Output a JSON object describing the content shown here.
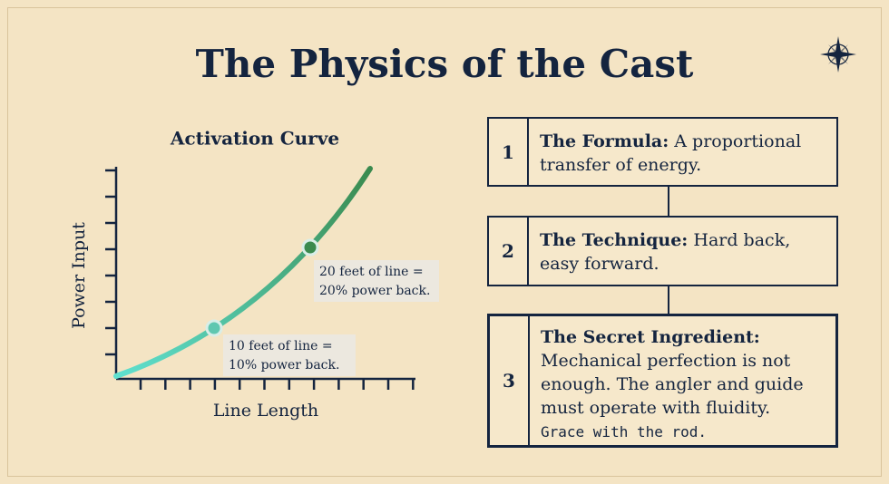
{
  "title": "The Physics of the Cast",
  "chart": {
    "title": "Activation Curve",
    "x_label": "Line Length",
    "y_label": "Power Input",
    "annotations": [
      [
        "20 feet of line =",
        "20% power back."
      ],
      [
        "10 feet of line =",
        "10% power back."
      ]
    ]
  },
  "steps": [
    {
      "number": "1",
      "label": "The Formula:",
      "text": "A proportional transfer of energy."
    },
    {
      "number": "2",
      "label": "The Technique:",
      "text": "Hard back, easy forward."
    },
    {
      "number": "3",
      "label": "The Secret Ingredient:",
      "text": "Mechanical perfection is not enough. The angler and guide must operate with fluidity.",
      "note": "Grace with the rod."
    }
  ]
}
